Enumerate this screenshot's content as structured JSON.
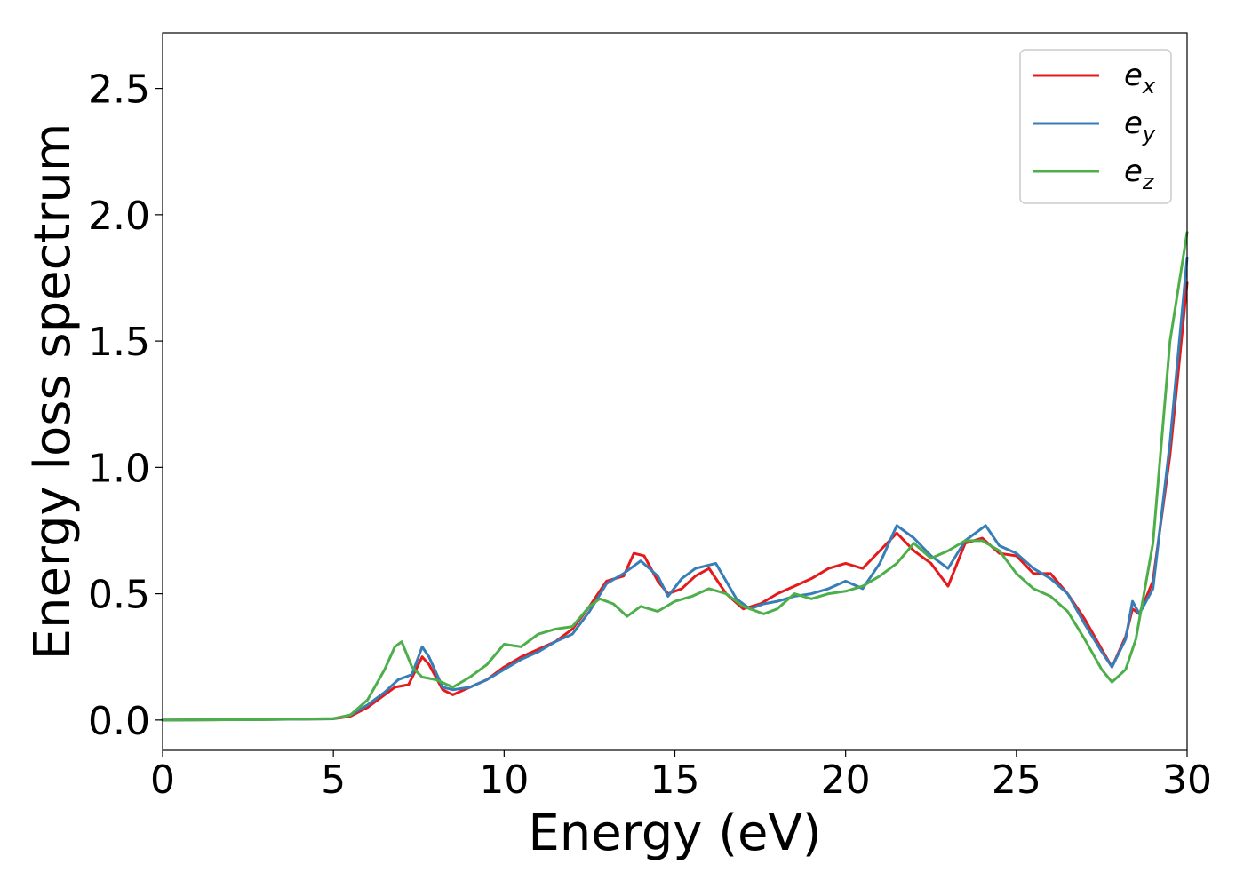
{
  "chart_data": {
    "type": "line",
    "title": "",
    "xlabel": "Energy (eV)",
    "ylabel": "Energy loss spectrum",
    "xlim": [
      0,
      30
    ],
    "ylim": [
      -0.12,
      2.72
    ],
    "xticks": [
      0,
      5,
      10,
      15,
      20,
      25,
      30
    ],
    "xtick_labels": [
      "0",
      "5",
      "10",
      "15",
      "20",
      "25",
      "30"
    ],
    "yticks": [
      0.0,
      0.5,
      1.0,
      1.5,
      2.0,
      2.5
    ],
    "ytick_labels": [
      "0.0",
      "0.5",
      "1.0",
      "1.5",
      "2.0",
      "2.5"
    ],
    "grid": false,
    "legend_position": "top-right",
    "series": [
      {
        "name": "e_x",
        "legend_main": "e",
        "legend_sub": "x",
        "color": "#e41a1c",
        "points": [
          [
            0,
            0
          ],
          [
            3,
            0.002
          ],
          [
            5,
            0.005
          ],
          [
            5.5,
            0.015
          ],
          [
            6,
            0.05
          ],
          [
            6.5,
            0.1
          ],
          [
            6.8,
            0.13
          ],
          [
            7.2,
            0.14
          ],
          [
            7.6,
            0.25
          ],
          [
            7.8,
            0.22
          ],
          [
            8.2,
            0.12
          ],
          [
            8.5,
            0.1
          ],
          [
            9,
            0.13
          ],
          [
            9.5,
            0.16
          ],
          [
            10,
            0.21
          ],
          [
            10.5,
            0.25
          ],
          [
            11,
            0.28
          ],
          [
            11.5,
            0.31
          ],
          [
            12,
            0.36
          ],
          [
            12.5,
            0.45
          ],
          [
            13,
            0.55
          ],
          [
            13.5,
            0.57
          ],
          [
            13.8,
            0.66
          ],
          [
            14.1,
            0.65
          ],
          [
            14.5,
            0.55
          ],
          [
            14.8,
            0.5
          ],
          [
            15.2,
            0.52
          ],
          [
            15.6,
            0.57
          ],
          [
            16,
            0.6
          ],
          [
            16.5,
            0.5
          ],
          [
            17,
            0.44
          ],
          [
            17.5,
            0.46
          ],
          [
            18,
            0.5
          ],
          [
            18.5,
            0.53
          ],
          [
            19,
            0.56
          ],
          [
            19.5,
            0.6
          ],
          [
            20,
            0.62
          ],
          [
            20.5,
            0.6
          ],
          [
            21,
            0.67
          ],
          [
            21.5,
            0.74
          ],
          [
            22,
            0.67
          ],
          [
            22.5,
            0.62
          ],
          [
            23,
            0.53
          ],
          [
            23.5,
            0.7
          ],
          [
            24,
            0.72
          ],
          [
            24.5,
            0.66
          ],
          [
            25,
            0.65
          ],
          [
            25.5,
            0.58
          ],
          [
            26,
            0.58
          ],
          [
            26.5,
            0.5
          ],
          [
            27,
            0.4
          ],
          [
            27.5,
            0.28
          ],
          [
            27.8,
            0.21
          ],
          [
            28.2,
            0.33
          ],
          [
            28.4,
            0.44
          ],
          [
            28.6,
            0.42
          ],
          [
            29,
            0.55
          ],
          [
            29.5,
            1.05
          ],
          [
            30,
            1.73
          ]
        ]
      },
      {
        "name": "e_y",
        "legend_main": "e",
        "legend_sub": "y",
        "color": "#377eb8",
        "points": [
          [
            0,
            0
          ],
          [
            3,
            0.002
          ],
          [
            5,
            0.005
          ],
          [
            5.5,
            0.02
          ],
          [
            6,
            0.06
          ],
          [
            6.5,
            0.11
          ],
          [
            6.9,
            0.16
          ],
          [
            7.3,
            0.18
          ],
          [
            7.6,
            0.29
          ],
          [
            7.8,
            0.25
          ],
          [
            8.2,
            0.13
          ],
          [
            8.5,
            0.12
          ],
          [
            9,
            0.13
          ],
          [
            9.5,
            0.16
          ],
          [
            10,
            0.2
          ],
          [
            10.5,
            0.24
          ],
          [
            11,
            0.27
          ],
          [
            11.5,
            0.31
          ],
          [
            12,
            0.34
          ],
          [
            12.5,
            0.43
          ],
          [
            13,
            0.54
          ],
          [
            13.5,
            0.58
          ],
          [
            14,
            0.63
          ],
          [
            14.5,
            0.57
          ],
          [
            14.8,
            0.49
          ],
          [
            15.2,
            0.56
          ],
          [
            15.6,
            0.6
          ],
          [
            16.2,
            0.62
          ],
          [
            16.8,
            0.48
          ],
          [
            17.2,
            0.44
          ],
          [
            17.6,
            0.46
          ],
          [
            18,
            0.47
          ],
          [
            18.5,
            0.49
          ],
          [
            19,
            0.5
          ],
          [
            19.5,
            0.52
          ],
          [
            20,
            0.55
          ],
          [
            20.5,
            0.52
          ],
          [
            21,
            0.62
          ],
          [
            21.5,
            0.77
          ],
          [
            22,
            0.72
          ],
          [
            22.5,
            0.65
          ],
          [
            23,
            0.6
          ],
          [
            23.5,
            0.71
          ],
          [
            24.1,
            0.77
          ],
          [
            24.5,
            0.69
          ],
          [
            25,
            0.66
          ],
          [
            25.5,
            0.6
          ],
          [
            26,
            0.56
          ],
          [
            26.5,
            0.5
          ],
          [
            27,
            0.38
          ],
          [
            27.5,
            0.27
          ],
          [
            27.8,
            0.21
          ],
          [
            28.2,
            0.32
          ],
          [
            28.4,
            0.47
          ],
          [
            28.6,
            0.42
          ],
          [
            29,
            0.52
          ],
          [
            29.5,
            1.1
          ],
          [
            30,
            1.83
          ]
        ]
      },
      {
        "name": "e_z",
        "legend_main": "e",
        "legend_sub": "z",
        "color": "#4daf4a",
        "points": [
          [
            0,
            0
          ],
          [
            3,
            0.002
          ],
          [
            5,
            0.006
          ],
          [
            5.5,
            0.02
          ],
          [
            6,
            0.08
          ],
          [
            6.5,
            0.2
          ],
          [
            6.8,
            0.29
          ],
          [
            7,
            0.31
          ],
          [
            7.3,
            0.21
          ],
          [
            7.6,
            0.17
          ],
          [
            8,
            0.16
          ],
          [
            8.5,
            0.13
          ],
          [
            9,
            0.17
          ],
          [
            9.5,
            0.22
          ],
          [
            10,
            0.3
          ],
          [
            10.5,
            0.29
          ],
          [
            11,
            0.34
          ],
          [
            11.5,
            0.36
          ],
          [
            12,
            0.37
          ],
          [
            12.5,
            0.45
          ],
          [
            12.8,
            0.48
          ],
          [
            13.2,
            0.46
          ],
          [
            13.6,
            0.41
          ],
          [
            14,
            0.45
          ],
          [
            14.5,
            0.43
          ],
          [
            15,
            0.47
          ],
          [
            15.5,
            0.49
          ],
          [
            16,
            0.52
          ],
          [
            16.5,
            0.5
          ],
          [
            17,
            0.45
          ],
          [
            17.6,
            0.42
          ],
          [
            18,
            0.44
          ],
          [
            18.5,
            0.5
          ],
          [
            19,
            0.48
          ],
          [
            19.5,
            0.5
          ],
          [
            20,
            0.51
          ],
          [
            20.5,
            0.53
          ],
          [
            21,
            0.57
          ],
          [
            21.5,
            0.62
          ],
          [
            22,
            0.7
          ],
          [
            22.5,
            0.64
          ],
          [
            23,
            0.67
          ],
          [
            23.5,
            0.71
          ],
          [
            24,
            0.71
          ],
          [
            24.5,
            0.67
          ],
          [
            25,
            0.58
          ],
          [
            25.5,
            0.52
          ],
          [
            26,
            0.49
          ],
          [
            26.5,
            0.43
          ],
          [
            27,
            0.32
          ],
          [
            27.5,
            0.2
          ],
          [
            27.8,
            0.15
          ],
          [
            28.2,
            0.2
          ],
          [
            28.5,
            0.32
          ],
          [
            29,
            0.7
          ],
          [
            29.5,
            1.5
          ],
          [
            30,
            1.93
          ]
        ]
      }
    ]
  }
}
